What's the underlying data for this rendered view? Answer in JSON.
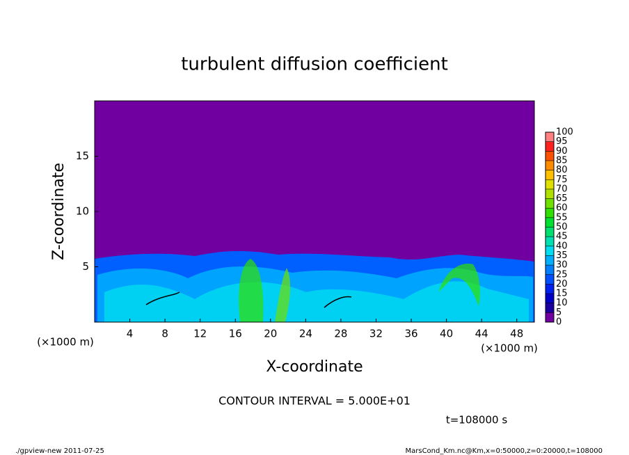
{
  "chart_data": {
    "type": "contour",
    "title": "turbulent diffusion coefficient",
    "x_label": "X-coordinate",
    "y_label": "Z-coordinate",
    "x_unit": "(×1000 m)",
    "y_unit": "(×1000 m)",
    "xlim": [
      0,
      50
    ],
    "xticks": [
      4,
      8,
      12,
      16,
      20,
      24,
      28,
      32,
      36,
      40,
      44,
      48
    ],
    "ylim": [
      0,
      20
    ],
    "yticks": [
      5,
      10,
      15
    ],
    "background_color": "#7000a0",
    "colorbar": {
      "range": [
        0,
        100
      ],
      "ticks": [
        0,
        5,
        10,
        15,
        20,
        25,
        30,
        35,
        40,
        45,
        50,
        55,
        60,
        65,
        70,
        75,
        80,
        85,
        90,
        95,
        100
      ],
      "colors": [
        "#7000a0",
        "#1a00a0",
        "#0000c8",
        "#0020f0",
        "#0050ff",
        "#0080ff",
        "#00b0ff",
        "#00dcf0",
        "#00e0b0",
        "#00e070",
        "#00e030",
        "#30e000",
        "#70e000",
        "#b0e000",
        "#e0e000",
        "#ffc000",
        "#ff8c00",
        "#ff5000",
        "#ff2020",
        "#ff8080"
      ]
    },
    "contour_interval": "CONTOUR INTERVAL = 5.000E+01",
    "time_label": "t=108000 s",
    "footer_left": "./gpview-new  2011-07-25",
    "footer_right": "MarsCond_Km.nc@Km,x=0:50000,z=0:20000,t=108000"
  }
}
